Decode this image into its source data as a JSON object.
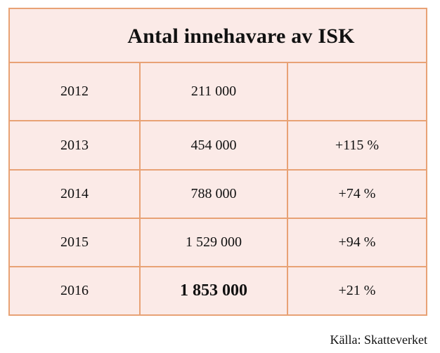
{
  "chart_data": {
    "type": "table",
    "title": "Antal innehavare av ISK",
    "rows": [
      {
        "year": "2012",
        "holders": "211 000",
        "change": ""
      },
      {
        "year": "2013",
        "holders": "454 000",
        "change": "+115 %"
      },
      {
        "year": "2014",
        "holders": "788 000",
        "change": "+74 %"
      },
      {
        "year": "2015",
        "holders": "1 529 000",
        "change": "+94 %"
      },
      {
        "year": "2016",
        "holders": "1 853 000",
        "change": "+21 %"
      }
    ],
    "x": [
      2012,
      2013,
      2014,
      2015,
      2016
    ],
    "values": [
      211000,
      454000,
      788000,
      1529000,
      1853000
    ],
    "source": "Källa: Skatteverket"
  },
  "colors": {
    "border": "#e8a275",
    "fill": "#fbeae7"
  }
}
